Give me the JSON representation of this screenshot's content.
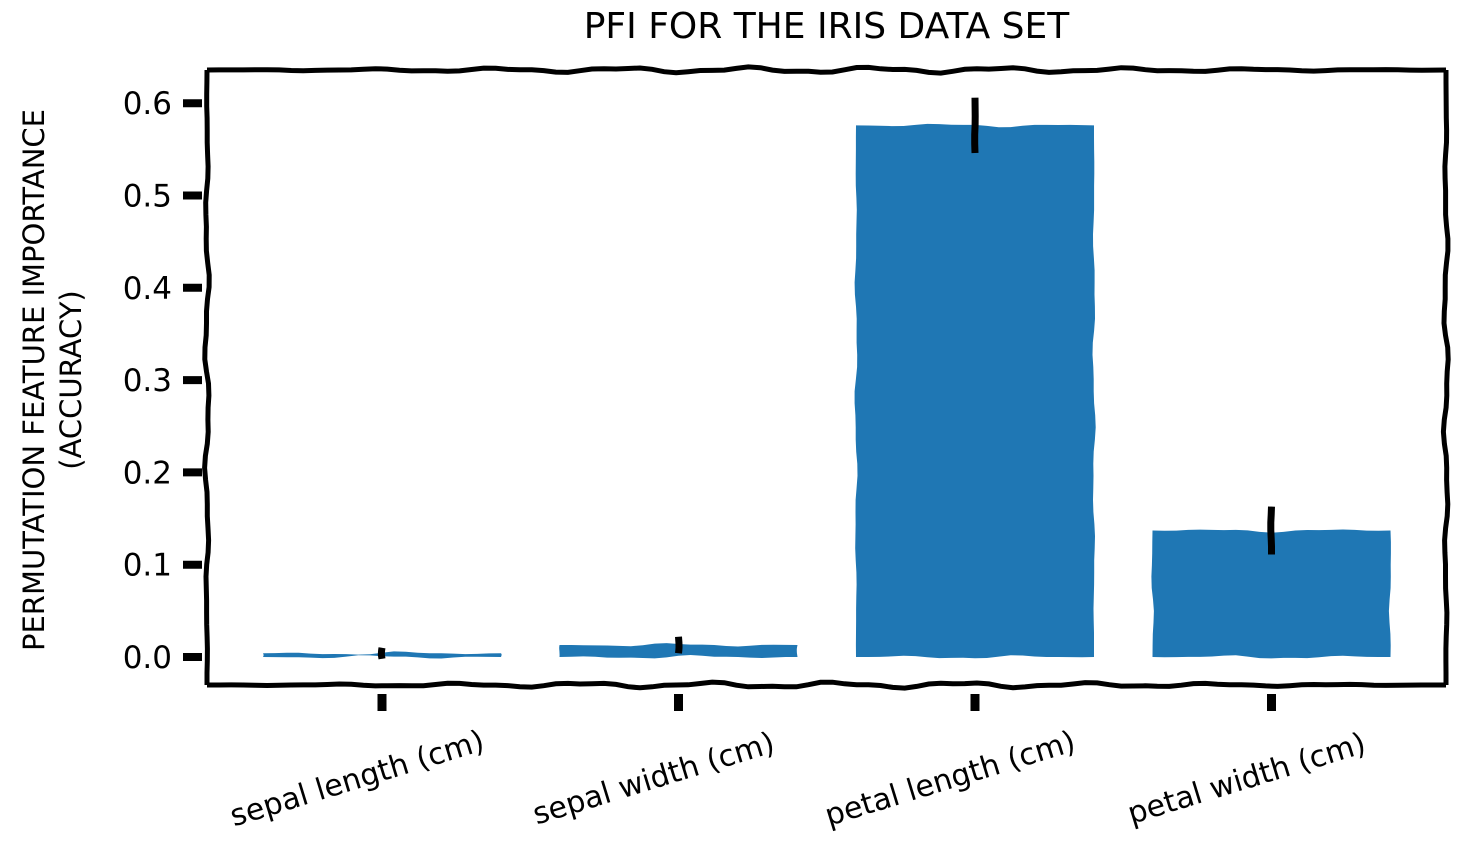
{
  "title": "PFI FOR THE IRIS DATA SET",
  "ylabel_line1": "PERMUTATION FEATURE IMPORTANCE",
  "ylabel_line2": "(ACCURACY)",
  "chart_data": {
    "type": "bar",
    "style": "xkcd-sketch",
    "title": "PFI FOR THE IRIS DATA SET",
    "ylabel": "PERMUTATION FEATURE IMPORTANCE (ACCURACY)",
    "categories": [
      "sepal length (cm)",
      "sepal width (cm)",
      "petal length (cm)",
      "petal width (cm)"
    ],
    "values": [
      0.004,
      0.013,
      0.576,
      0.137
    ],
    "errors": [
      0.006,
      0.009,
      0.03,
      0.026
    ],
    "yticks": [
      "0.0",
      "0.1",
      "0.2",
      "0.3",
      "0.4",
      "0.5",
      "0.6"
    ],
    "ytick_values": [
      0.0,
      0.1,
      0.2,
      0.3,
      0.4,
      0.5,
      0.6
    ],
    "ylim": [
      -0.031,
      0.637
    ],
    "xtick_label_rotation_deg": -17,
    "bar_color": "#1f77b4",
    "axis_color": "#000000",
    "error_bar_color": "#000000",
    "grid": false,
    "legend": null,
    "frame": "full-box"
  }
}
